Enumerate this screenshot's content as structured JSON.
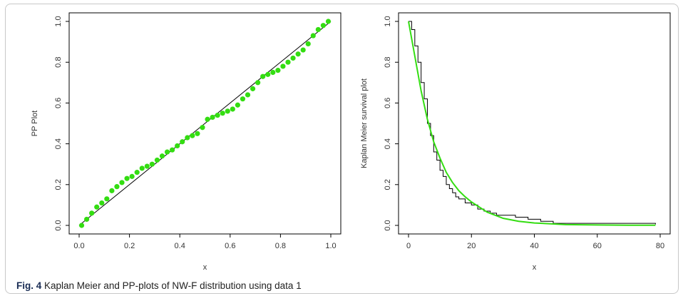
{
  "caption": {
    "label": "Fig. 4",
    "text": " Kaplan Meier and PP-plots of NW-F distribution using data 1"
  },
  "colors": {
    "points": "#33dd11",
    "fitted_curve": "#33dd11",
    "reference": "#000000",
    "km_step": "#000000"
  },
  "chart_data": [
    {
      "type": "scatter",
      "xlabel": "x",
      "ylabel": "PP Plot",
      "xlim": [
        0,
        1
      ],
      "ylim": [
        0,
        1
      ],
      "xticks": [
        "0.0",
        "0.2",
        "0.4",
        "0.6",
        "0.8",
        "1.0"
      ],
      "yticks": [
        "0.0",
        "0.2",
        "0.4",
        "0.6",
        "0.8",
        "1.0"
      ],
      "reference_line": [
        [
          0,
          0
        ],
        [
          1,
          1
        ]
      ],
      "series": [
        {
          "values": [
            [
              0.01,
              0.0
            ],
            [
              0.03,
              0.03
            ],
            [
              0.05,
              0.06
            ],
            [
              0.07,
              0.09
            ],
            [
              0.09,
              0.11
            ],
            [
              0.11,
              0.13
            ],
            [
              0.13,
              0.17
            ],
            [
              0.15,
              0.19
            ],
            [
              0.17,
              0.21
            ],
            [
              0.19,
              0.23
            ],
            [
              0.21,
              0.24
            ],
            [
              0.23,
              0.26
            ],
            [
              0.25,
              0.28
            ],
            [
              0.27,
              0.29
            ],
            [
              0.29,
              0.3
            ],
            [
              0.31,
              0.32
            ],
            [
              0.33,
              0.34
            ],
            [
              0.35,
              0.36
            ],
            [
              0.37,
              0.37
            ],
            [
              0.39,
              0.39
            ],
            [
              0.41,
              0.41
            ],
            [
              0.43,
              0.43
            ],
            [
              0.45,
              0.44
            ],
            [
              0.47,
              0.45
            ],
            [
              0.49,
              0.48
            ],
            [
              0.51,
              0.52
            ],
            [
              0.53,
              0.53
            ],
            [
              0.55,
              0.54
            ],
            [
              0.57,
              0.55
            ],
            [
              0.59,
              0.56
            ],
            [
              0.61,
              0.57
            ],
            [
              0.63,
              0.59
            ],
            [
              0.65,
              0.62
            ],
            [
              0.67,
              0.64
            ],
            [
              0.69,
              0.67
            ],
            [
              0.71,
              0.7
            ],
            [
              0.73,
              0.73
            ],
            [
              0.75,
              0.74
            ],
            [
              0.77,
              0.75
            ],
            [
              0.79,
              0.76
            ],
            [
              0.81,
              0.78
            ],
            [
              0.83,
              0.8
            ],
            [
              0.85,
              0.82
            ],
            [
              0.87,
              0.84
            ],
            [
              0.89,
              0.86
            ],
            [
              0.91,
              0.89
            ],
            [
              0.93,
              0.93
            ],
            [
              0.95,
              0.96
            ],
            [
              0.97,
              0.98
            ],
            [
              0.99,
              1.0
            ]
          ]
        }
      ]
    },
    {
      "type": "line",
      "xlabel": "x",
      "ylabel": "Kaplan Meier survival plot",
      "xlim": [
        0,
        80
      ],
      "ylim": [
        0,
        1
      ],
      "xticks": [
        "0",
        "20",
        "40",
        "60",
        "80"
      ],
      "yticks": [
        "0.0",
        "0.2",
        "0.4",
        "0.6",
        "0.8",
        "1.0"
      ],
      "series": [
        {
          "style": "step",
          "x": [
            0,
            1,
            2,
            3,
            4,
            5,
            6,
            7,
            8,
            9,
            10,
            11,
            12,
            13,
            14,
            15,
            16,
            18,
            20,
            22,
            24,
            26,
            28,
            30,
            34,
            38,
            42,
            46,
            78.5
          ],
          "y": [
            1.0,
            0.96,
            0.88,
            0.8,
            0.7,
            0.62,
            0.5,
            0.44,
            0.36,
            0.32,
            0.27,
            0.24,
            0.2,
            0.18,
            0.16,
            0.14,
            0.13,
            0.11,
            0.1,
            0.08,
            0.07,
            0.06,
            0.05,
            0.05,
            0.04,
            0.03,
            0.02,
            0.01,
            0.005
          ]
        },
        {
          "style": "smooth",
          "x": [
            0,
            2,
            4,
            6,
            8,
            10,
            12,
            14,
            16,
            18,
            20,
            25,
            30,
            35,
            40,
            50,
            60,
            70,
            78.5
          ],
          "y": [
            1.0,
            0.83,
            0.66,
            0.52,
            0.41,
            0.33,
            0.26,
            0.21,
            0.17,
            0.14,
            0.115,
            0.065,
            0.035,
            0.02,
            0.012,
            0.004,
            0.002,
            0.001,
            0.001
          ]
        }
      ]
    }
  ]
}
